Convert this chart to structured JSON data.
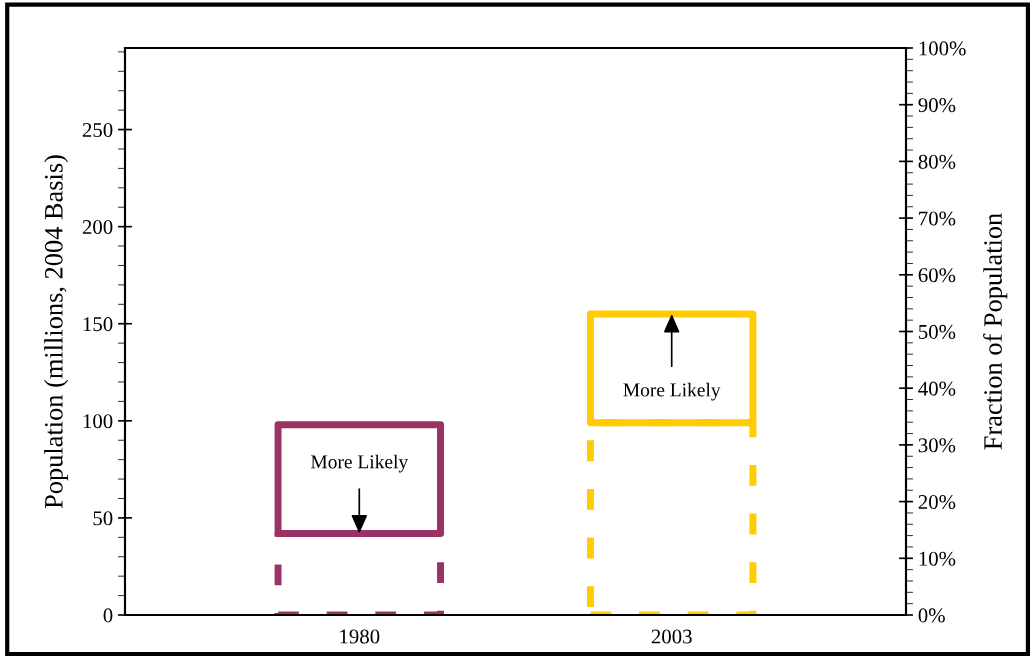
{
  "chart_data": {
    "type": "bar",
    "stacked": true,
    "categories": [
      "1980",
      "2003"
    ],
    "ylabel": "Population (millions, 2004 Basis)",
    "y2label": "Fraction of Population",
    "ylim": [
      0,
      292
    ],
    "yticks": [
      0,
      50,
      100,
      150,
      200,
      250
    ],
    "y2lim": [
      0,
      100
    ],
    "y2ticks": [
      {
        "value": 0,
        "label": "0%"
      },
      {
        "value": 10,
        "label": "10%"
      },
      {
        "value": 20,
        "label": "20%"
      },
      {
        "value": 30,
        "label": "30%"
      },
      {
        "value": 40,
        "label": "40%"
      },
      {
        "value": 50,
        "label": "50%"
      },
      {
        "value": 60,
        "label": "60%"
      },
      {
        "value": 70,
        "label": "70%"
      },
      {
        "value": 80,
        "label": "80%"
      },
      {
        "value": 90,
        "label": "90%"
      },
      {
        "value": 100,
        "label": "100%"
      }
    ],
    "series": [
      {
        "colors": [
          "#993366",
          "#ffcc00"
        ],
        "values": [
          42,
          99
        ],
        "line_style": "dashed"
      },
      {
        "colors": [
          "#993366",
          "#ffcc00"
        ],
        "values": [
          56,
          56
        ],
        "line_style": "solid"
      }
    ],
    "annotations": [
      {
        "text": "More Likely",
        "x": "1980",
        "y": 42
      },
      {
        "text": "More Likely",
        "x": "2003",
        "y": 155
      }
    ],
    "grid": false,
    "legend": false
  }
}
